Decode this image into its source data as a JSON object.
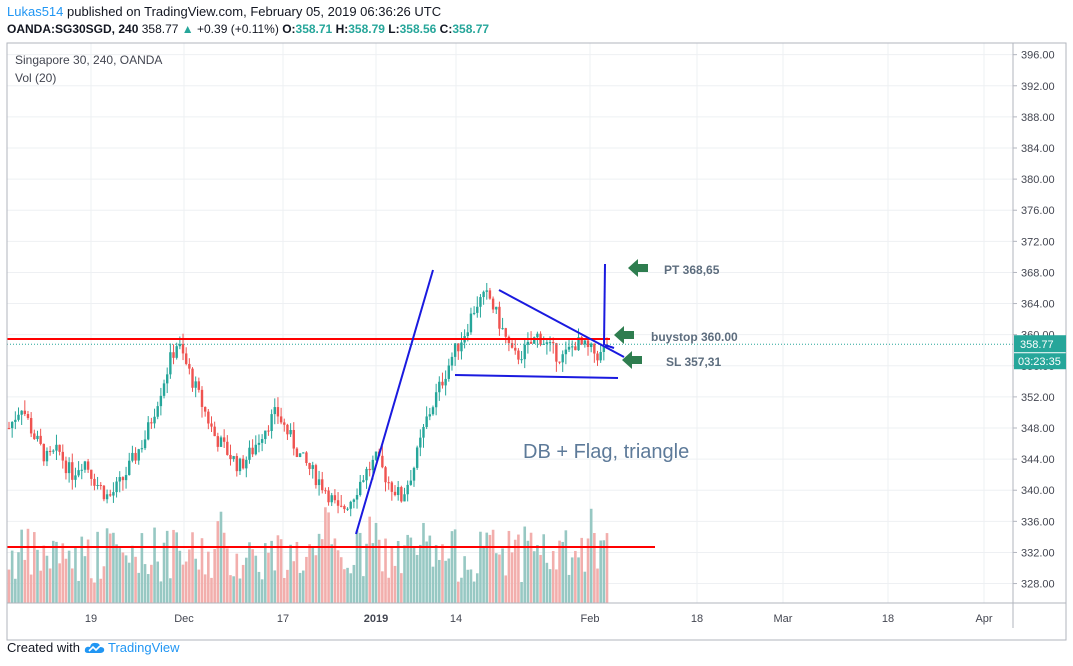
{
  "header": {
    "user": "Lukas514",
    "published": " published on TradingView.com, February 05, 2019 06:36:26 UTC",
    "symbol": "OANDA:SG30SGD, 240",
    "last": "358.77",
    "up_arrow": "▲",
    "change": "+0.39 (+0.11%)",
    "o_label": "O:",
    "o": "358.71",
    "h_label": "H:",
    "h": "358.79",
    "l_label": "L:",
    "l": "358.56",
    "c_label": "C:",
    "c": "358.77"
  },
  "legend": {
    "title": "Singapore 30, 240, OANDA",
    "vol": "Vol (20)"
  },
  "footer": {
    "created_with": "Created with",
    "brand": "TradingView"
  },
  "colors": {
    "up": "#26a69a",
    "down": "#ef5350",
    "vol_up": "#97c8c3",
    "vol_down": "#f2aeac",
    "trend": "#1a1adf",
    "hline": "#ff0000",
    "arrow": "#2e7d4f",
    "price_badge": "#26a69a"
  },
  "chart_data": {
    "type": "candlestick",
    "y_ticks": [
      "396.00",
      "392.00",
      "388.00",
      "384.00",
      "380.00",
      "376.00",
      "372.00",
      "368.00",
      "364.00",
      "360.00",
      "356.00",
      "352.00",
      "348.00",
      "344.00",
      "340.00",
      "336.00",
      "332.00",
      "328.00"
    ],
    "x_ticks": [
      "19",
      "Dec",
      "17",
      "2019",
      "14",
      "Feb",
      "18",
      "Mar",
      "18",
      "Apr"
    ],
    "ylim": [
      325.5,
      397.5
    ],
    "last_price": "358.77",
    "countdown": "03:23:35",
    "price_path": [
      [
        0,
        348
      ],
      [
        2,
        351
      ],
      [
        4,
        347
      ],
      [
        6,
        344
      ],
      [
        8,
        345
      ],
      [
        10,
        342
      ],
      [
        12,
        344
      ],
      [
        14,
        341
      ],
      [
        16,
        339
      ],
      [
        18,
        341
      ],
      [
        20,
        344
      ],
      [
        22,
        347
      ],
      [
        24,
        352
      ],
      [
        26,
        357
      ],
      [
        27,
        359
      ],
      [
        29,
        355
      ],
      [
        31,
        351
      ],
      [
        33,
        347
      ],
      [
        35,
        345
      ],
      [
        37,
        343
      ],
      [
        39,
        345
      ],
      [
        41,
        348
      ],
      [
        43,
        350
      ],
      [
        45,
        347
      ],
      [
        47,
        344
      ],
      [
        49,
        342
      ],
      [
        51,
        340
      ],
      [
        53,
        337
      ],
      [
        55,
        339
      ],
      [
        57,
        342
      ],
      [
        59,
        344
      ],
      [
        61,
        341
      ],
      [
        63,
        339
      ],
      [
        65,
        343
      ],
      [
        67,
        349
      ],
      [
        69,
        353
      ],
      [
        71,
        357
      ],
      [
        73,
        360
      ],
      [
        75,
        364
      ],
      [
        77,
        365
      ],
      [
        79,
        361
      ],
      [
        81,
        357
      ],
      [
        83,
        358
      ],
      [
        85,
        360
      ],
      [
        87,
        358
      ],
      [
        89,
        357
      ],
      [
        91,
        359
      ],
      [
        93,
        358
      ],
      [
        95,
        357.3
      ],
      [
        96,
        358.8
      ]
    ],
    "annotations": [
      {
        "type": "text",
        "text": "PT 368,65"
      },
      {
        "type": "text",
        "text": "buystop 360.00"
      },
      {
        "type": "text",
        "text": "SL 357,31"
      },
      {
        "type": "text",
        "text": "DB + Flag, triangle"
      }
    ]
  }
}
